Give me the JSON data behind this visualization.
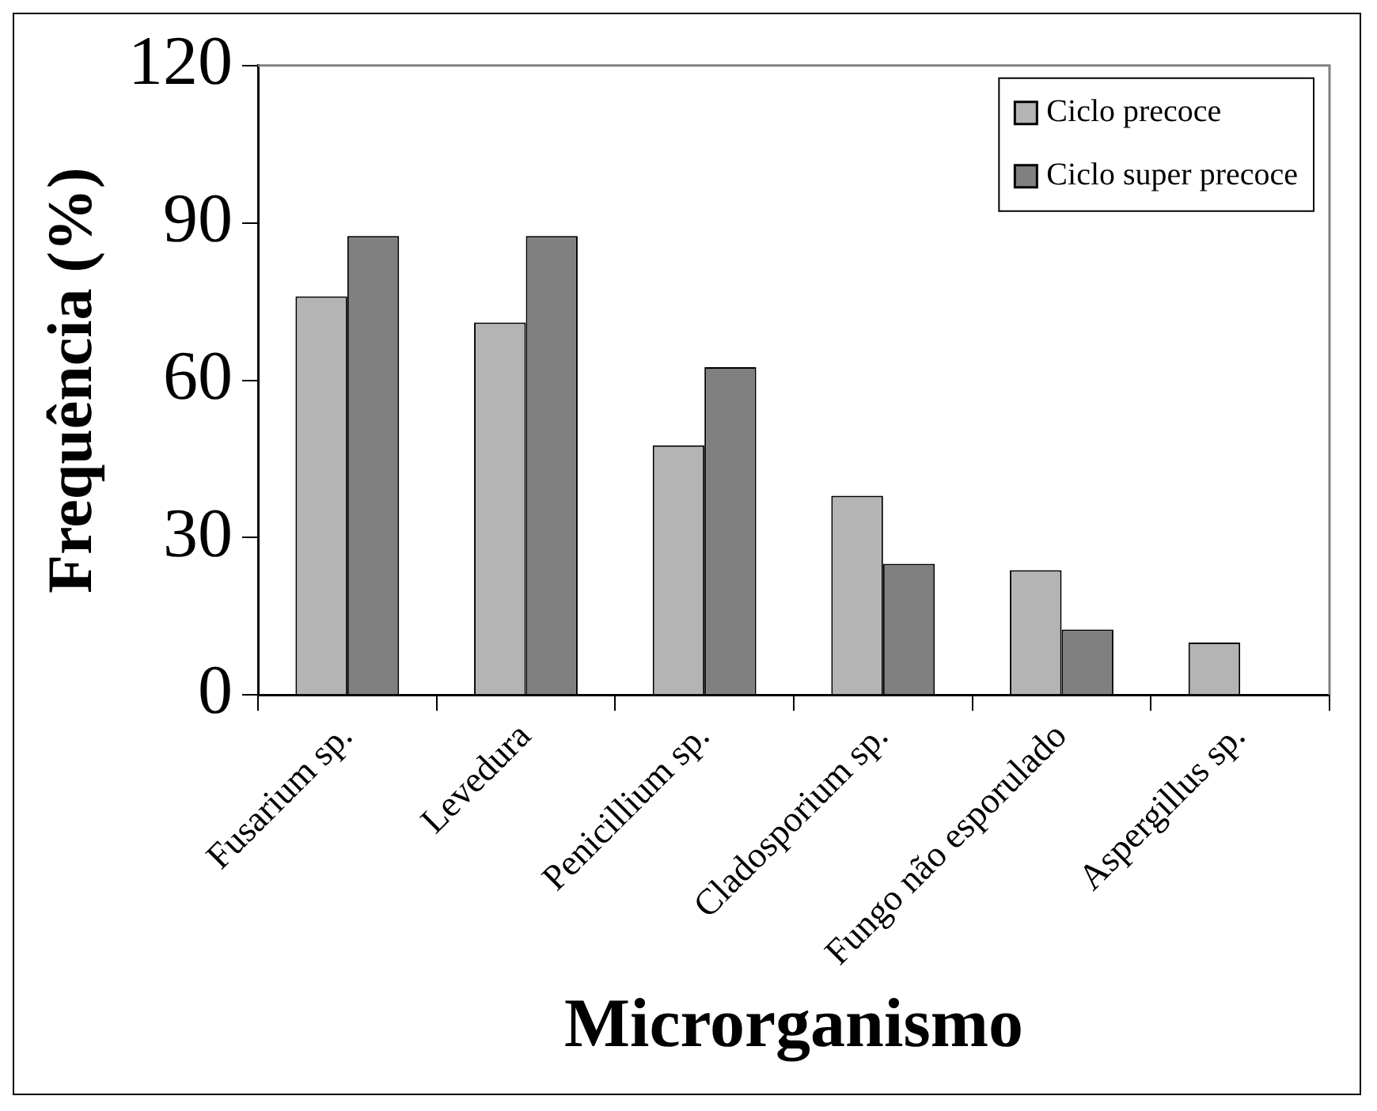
{
  "chart_data": {
    "type": "bar",
    "xlabel": "Microrganismo",
    "ylabel": "Frequência (%)",
    "categories": [
      "Fusarium sp.",
      "Levedura",
      "Penicillium sp.",
      "Cladosporium sp.",
      "Fungo não esporulado",
      "Aspergillus sp."
    ],
    "series": [
      {
        "name": "Ciclo precoce",
        "color": "#b4b4b4",
        "values": [
          76,
          71,
          47.6,
          38,
          23.8,
          10
        ]
      },
      {
        "name": "Ciclo super precoce",
        "color": "#808080",
        "values": [
          87.5,
          87.5,
          62.5,
          25,
          12.5,
          0
        ]
      }
    ],
    "ylim": [
      0,
      120
    ],
    "yticks": [
      0,
      30,
      60,
      90,
      120
    ],
    "grid": false,
    "legend": "top right"
  }
}
